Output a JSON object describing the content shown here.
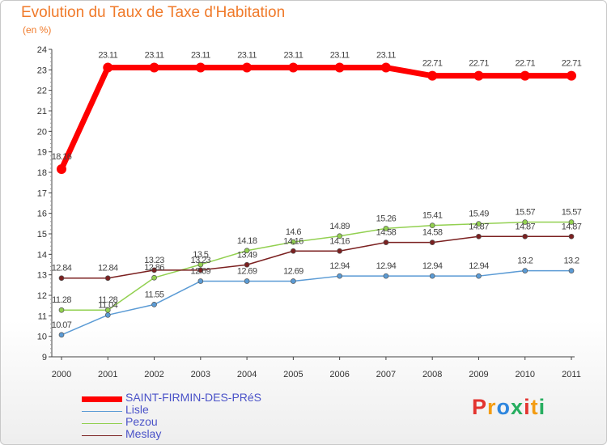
{
  "header": {
    "title": "Evolution du Taux de Taxe d'Habitation",
    "subtitle": "(en %)"
  },
  "logo": {
    "letters": [
      "P",
      "r",
      "o",
      "x",
      "i",
      "t",
      "i"
    ],
    "colors": [
      "#e3342f",
      "#f39c12",
      "#2e86de",
      "#27ae60",
      "#e3342f",
      "#f39c12",
      "#27ae60"
    ]
  },
  "chart_data": {
    "type": "line",
    "title": "Evolution du Taux de Taxe d'Habitation",
    "subtitle": "(en %)",
    "xlabel": "",
    "ylabel": "",
    "x": [
      "2000",
      "2001",
      "2002",
      "2003",
      "2004",
      "2005",
      "2006",
      "2007",
      "2008",
      "2009",
      "2010",
      "2011"
    ],
    "ylim": [
      9,
      24
    ],
    "yticks": [
      9,
      10,
      11,
      12,
      13,
      14,
      15,
      16,
      17,
      18,
      19,
      20,
      21,
      22,
      23,
      24
    ],
    "grid": false,
    "legend_position": "bottom-left",
    "series": [
      {
        "name": "SAINT-FIRMIN-DES-PRéS",
        "color": "#ff0000",
        "values": [
          18.16,
          23.11,
          23.11,
          23.11,
          23.11,
          23.11,
          23.11,
          23.11,
          22.71,
          22.71,
          22.71,
          22.71
        ],
        "labels": [
          "18.16",
          "23.11",
          "23.11",
          "23.11",
          "23.11",
          "23.11",
          "23.11",
          "23.11",
          "22.71",
          "22.71",
          "22.71",
          "22.71"
        ]
      },
      {
        "name": "Lisle",
        "color": "#5b9bd5",
        "values": [
          10.07,
          11.04,
          11.55,
          12.69,
          12.69,
          12.69,
          12.94,
          12.94,
          12.94,
          12.94,
          13.2,
          13.2
        ],
        "labels": [
          "10.07",
          "11.04",
          "11.55",
          "12.69",
          "12.69",
          "12.69",
          "12.94",
          "12.94",
          "12.94",
          "12.94",
          "13.2",
          "13.2"
        ]
      },
      {
        "name": "Pezou",
        "color": "#92d050",
        "values": [
          11.28,
          11.28,
          12.86,
          13.5,
          14.18,
          14.6,
          14.89,
          15.26,
          15.41,
          15.49,
          15.57,
          15.57
        ],
        "labels": [
          "11.28",
          "11.28",
          "12.86",
          "13.5",
          "14.18",
          "14.6",
          "14.89",
          "15.26",
          "15.41",
          "15.49",
          "15.57",
          "15.57"
        ]
      },
      {
        "name": "Meslay",
        "color": "#7b2020",
        "values": [
          12.84,
          12.84,
          13.23,
          13.23,
          13.49,
          14.16,
          14.16,
          14.58,
          14.58,
          14.87,
          14.87,
          14.87
        ],
        "labels": [
          "12.84",
          "12.84",
          "13.23",
          "13.23",
          "13.49",
          "14.16",
          "14.16",
          "14.58",
          "14.58",
          "14.87",
          "14.87",
          "14.87"
        ]
      }
    ]
  }
}
